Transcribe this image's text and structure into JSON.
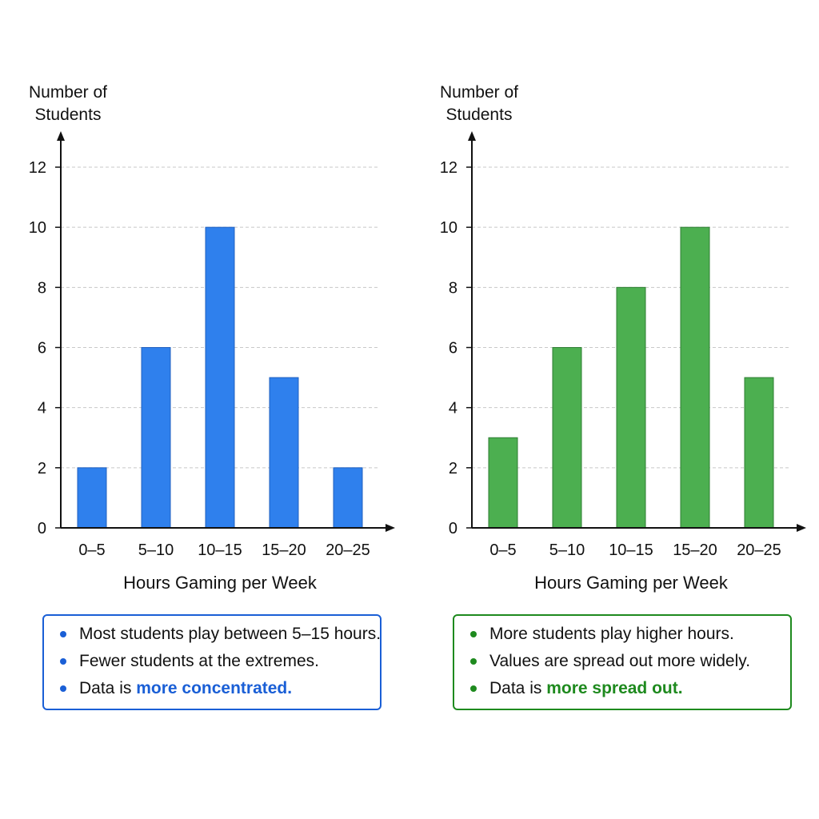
{
  "chart_data": [
    {
      "type": "bar",
      "ylabel": "Number of Students",
      "xlabel": "Hours Gaming per Week",
      "categories": [
        "0–5",
        "5–10",
        "10–15",
        "15–20",
        "20–25"
      ],
      "values": [
        2,
        6,
        10,
        5,
        2
      ],
      "ylim": [
        0,
        12
      ],
      "yticks": [
        0,
        2,
        4,
        6,
        8,
        10,
        12
      ],
      "grid": true,
      "color": "#2f80ed",
      "stroke": "#1f5fbf"
    },
    {
      "type": "bar",
      "ylabel": "Number of Students",
      "xlabel": "Hours Gaming per Week",
      "categories": [
        "0–5",
        "5–10",
        "10–15",
        "15–20",
        "20–25"
      ],
      "values": [
        3,
        6,
        8,
        10,
        5
      ],
      "ylim": [
        0,
        12
      ],
      "yticks": [
        0,
        2,
        4,
        6,
        8,
        10,
        12
      ],
      "grid": true,
      "color": "#4caf50",
      "stroke": "#2e7d32"
    }
  ],
  "notes": [
    {
      "accent": "#1a5fd6",
      "items": [
        {
          "text": "Most students play between 5–15 hours.",
          "strong": ""
        },
        {
          "text": "Fewer students at the extremes.",
          "strong": ""
        },
        {
          "text": "Data is ",
          "strong": "more concentrated."
        }
      ]
    },
    {
      "accent": "#1e8a1e",
      "items": [
        {
          "text": "More students play higher hours.",
          "strong": ""
        },
        {
          "text": "Values are spread out more widely.",
          "strong": ""
        },
        {
          "text": "Data is ",
          "strong": "more spread out."
        }
      ]
    }
  ]
}
